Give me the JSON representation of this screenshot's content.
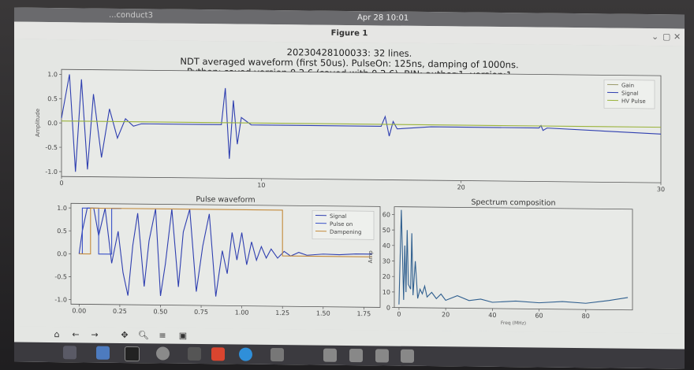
{
  "system": {
    "app_name": "...conduct3",
    "clock": "Apr 28 10:01"
  },
  "window": {
    "title": "Figure 1"
  },
  "figure": {
    "suptitle_lines": [
      "20230428100033: 32 lines.",
      "NDT averaged waveform (first 50us). PulseOn: 125ns, damping of 1000ns.",
      "Python: saved version 0.2.6 (saved with 0.2.6). BIN: author:1, version:1"
    ]
  },
  "chart_data": [
    {
      "type": "line",
      "title": "",
      "ylabel": "Amplitude",
      "xlabel": "",
      "xlim": [
        0,
        30
      ],
      "ylim": [
        -1.1,
        1.1
      ],
      "xticks": [
        "0",
        "10",
        "20",
        "30",
        "40",
        "50"
      ],
      "yticks": [
        "1.0",
        "0.5",
        "0.0",
        "-0.5",
        "-1.0"
      ],
      "legend": {
        "placement": "top-right",
        "entries": [
          "Gain",
          "Signal",
          "HV Pulse"
        ]
      },
      "series": [
        {
          "name": "Signal",
          "color": "#2f3fb0",
          "x": [
            0,
            0.4,
            0.7,
            1.0,
            1.3,
            1.6,
            2.0,
            2.4,
            2.8,
            3.2,
            3.6,
            4.0,
            8.0,
            8.2,
            8.4,
            8.6,
            8.8,
            9.0,
            9.5,
            10.5,
            16.0,
            16.2,
            16.4,
            16.6,
            16.8,
            18.5,
            23.9,
            24.0,
            24.1,
            24.3,
            30
          ],
          "y": [
            0.1,
            1.0,
            -1.0,
            0.9,
            -0.95,
            0.6,
            -0.7,
            0.3,
            -0.3,
            0.1,
            -0.05,
            0.0,
            0.0,
            0.75,
            -0.7,
            0.5,
            -0.4,
            0.15,
            0.0,
            0.0,
            0.0,
            0.2,
            -0.2,
            0.1,
            -0.05,
            0.0,
            0.0,
            0.05,
            -0.05,
            0.0,
            -0.1
          ]
        },
        {
          "name": "HV Pulse",
          "color": "#9ab33a",
          "x": [
            0,
            30
          ],
          "y": [
            0.04,
            0.04
          ]
        }
      ]
    },
    {
      "type": "line",
      "title": "Pulse waveform",
      "xlabel": "",
      "ylabel": "",
      "xlim": [
        -0.05,
        1.85
      ],
      "ylim": [
        -1.1,
        1.1
      ],
      "xticks": [
        "0.00",
        "0.25",
        "0.50",
        "0.75",
        "1.00",
        "1.25",
        "1.50",
        "1.75"
      ],
      "yticks": [
        "1.0",
        "0.5",
        "0.0",
        "-0.5",
        "-1.0"
      ],
      "legend": {
        "placement": "top-right",
        "entries": [
          "Signal",
          "Pulse on",
          "Dampening"
        ]
      },
      "series": [
        {
          "name": "Signal",
          "color": "#2f3fb0",
          "x": [
            0.0,
            0.02,
            0.05,
            0.09,
            0.12,
            0.16,
            0.2,
            0.24,
            0.27,
            0.3,
            0.33,
            0.36,
            0.4,
            0.43,
            0.47,
            0.5,
            0.53,
            0.57,
            0.61,
            0.64,
            0.68,
            0.72,
            0.76,
            0.8,
            0.84,
            0.88,
            0.91,
            0.94,
            0.97,
            1.0,
            1.03,
            1.06,
            1.09,
            1.12,
            1.15,
            1.18,
            1.22,
            1.26,
            1.3,
            1.35,
            1.4,
            1.5,
            1.6,
            1.7,
            1.8
          ],
          "y": [
            0.0,
            0.5,
            1.0,
            1.0,
            0.4,
            1.0,
            -0.2,
            0.5,
            -0.4,
            -0.9,
            0.2,
            0.9,
            -0.7,
            0.3,
            1.0,
            -0.9,
            -0.2,
            1.0,
            -0.7,
            0.5,
            1.0,
            -0.8,
            0.2,
            0.9,
            -0.9,
            0.1,
            -0.4,
            0.5,
            -0.1,
            0.5,
            -0.2,
            0.3,
            -0.1,
            0.2,
            -0.05,
            0.15,
            -0.05,
            0.1,
            0.0,
            0.08,
            0.02,
            0.05,
            0.04,
            0.06,
            0.06
          ]
        },
        {
          "name": "Pulse on",
          "color": "#3a52c8",
          "x": [
            0.0,
            0.02,
            0.02,
            0.12,
            0.12,
            0.2,
            0.2,
            0.26
          ],
          "y": [
            0.0,
            0.0,
            1.0,
            1.0,
            0.0,
            0.0,
            1.0,
            1.0
          ]
        },
        {
          "name": "Dampening",
          "color": "#c48a3a",
          "x": [
            0.0,
            0.07,
            0.07,
            1.25,
            1.25,
            1.8
          ],
          "y": [
            0.0,
            0.0,
            1.0,
            1.0,
            0.0,
            0.0
          ]
        }
      ]
    },
    {
      "type": "line",
      "title": "Spectrum composition",
      "xlabel": "Freq (MHz)",
      "ylabel": "Amp",
      "xlim": [
        -2,
        100
      ],
      "ylim": [
        0,
        65
      ],
      "xticks": [
        "0",
        "20",
        "40",
        "60",
        "80"
      ],
      "yticks": [
        "60",
        "50",
        "40",
        "30",
        "20",
        "10",
        "0"
      ],
      "series": [
        {
          "name": "",
          "color": "#2f5f8f",
          "x": [
            0,
            1,
            2,
            2.5,
            3,
            3.5,
            4,
            5,
            5.5,
            6,
            7,
            8,
            9,
            10,
            11,
            12,
            14,
            16,
            18,
            20,
            25,
            30,
            35,
            40,
            50,
            60,
            70,
            80,
            90,
            98
          ],
          "y": [
            2,
            63,
            5,
            40,
            10,
            50,
            15,
            12,
            48,
            8,
            30,
            6,
            12,
            9,
            14,
            7,
            10,
            6,
            9,
            5,
            8,
            5,
            6,
            4,
            5,
            4,
            5,
            4,
            6,
            8
          ]
        }
      ]
    }
  ],
  "toolbar": {
    "icons": [
      "home-icon",
      "back-icon",
      "forward-icon",
      "pan-icon",
      "zoom-icon",
      "configure-icon",
      "save-icon"
    ]
  },
  "taskbar": {
    "icons": [
      "apps-icon",
      "folder-icon",
      "terminal-icon",
      "files-icon",
      "app-icon-red",
      "help-icon",
      "app-icon-1",
      "app-icon-2",
      "app-icon-3",
      "app-icon-4"
    ]
  }
}
